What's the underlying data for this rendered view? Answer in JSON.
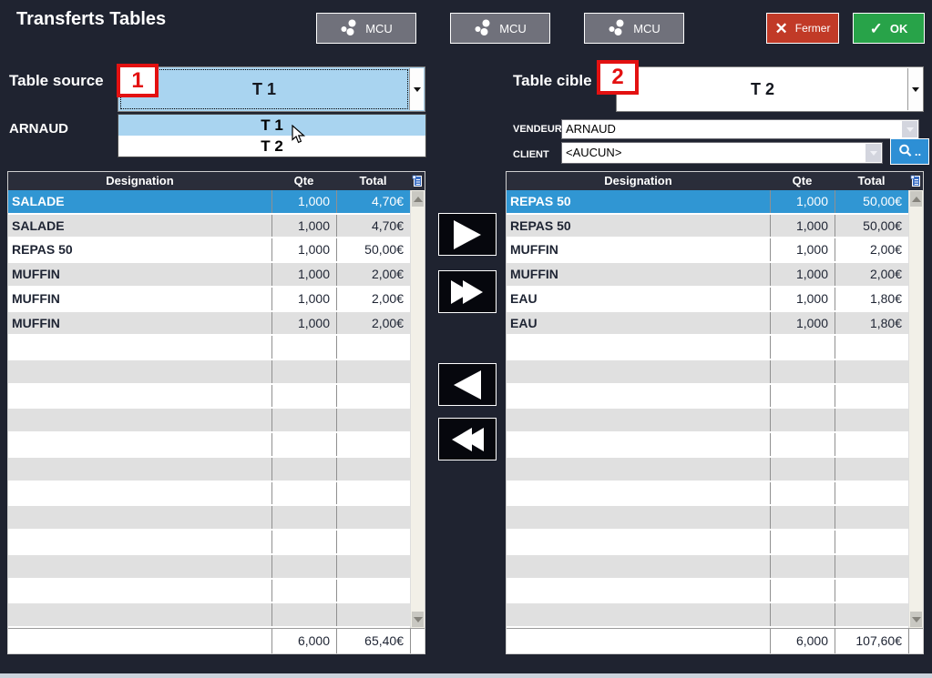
{
  "window": {
    "title": "Transferts Tables"
  },
  "toolbar": {
    "mcu_buttons": [
      "MCU",
      "MCU",
      "MCU"
    ],
    "fermer_label": "Fermer",
    "ok_label": "OK"
  },
  "source_panel": {
    "label": "Table source",
    "badge": "1",
    "selected_table": "T 1",
    "dropdown_options": [
      "T 1",
      "T 2"
    ],
    "vendor_name": "ARNAUD"
  },
  "target_panel": {
    "label": "Table cible",
    "badge": "2",
    "selected_table": "T 2",
    "vendeur_label": "VENDEUR",
    "vendeur_value": "ARNAUD",
    "client_label": "CLIENT",
    "client_value": "<AUCUN>",
    "search_button_label": ".."
  },
  "source_table": {
    "headers": [
      "Designation",
      "Qte",
      "Total"
    ],
    "selected_index": 0,
    "rows": [
      {
        "designation": "SALADE",
        "qte": "1,000",
        "total": "4,70€"
      },
      {
        "designation": "SALADE",
        "qte": "1,000",
        "total": "4,70€"
      },
      {
        "designation": "REPAS 50",
        "qte": "1,000",
        "total": "50,00€"
      },
      {
        "designation": "MUFFIN",
        "qte": "1,000",
        "total": "2,00€"
      },
      {
        "designation": "MUFFIN",
        "qte": "1,000",
        "total": "2,00€"
      },
      {
        "designation": "MUFFIN",
        "qte": "1,000",
        "total": "2,00€"
      }
    ],
    "total_qte": "6,000",
    "total_amount": "65,40€"
  },
  "target_table": {
    "headers": [
      "Designation",
      "Qte",
      "Total"
    ],
    "selected_index": 0,
    "rows": [
      {
        "designation": "REPAS 50",
        "qte": "1,000",
        "total": "50,00€"
      },
      {
        "designation": "REPAS 50",
        "qte": "1,000",
        "total": "50,00€"
      },
      {
        "designation": "MUFFIN",
        "qte": "1,000",
        "total": "2,00€"
      },
      {
        "designation": "MUFFIN",
        "qte": "1,000",
        "total": "2,00€"
      },
      {
        "designation": "EAU",
        "qte": "1,000",
        "total": "1,80€"
      },
      {
        "designation": "EAU",
        "qte": "1,000",
        "total": "1,80€"
      }
    ],
    "total_qte": "6,000",
    "total_amount": "107,60€"
  },
  "colors": {
    "bg": "#1f2330",
    "header_row": "#2a2d3a",
    "selected_row": "#3096d3",
    "row_alt": "#e0e0e0",
    "light_blue": "#a9d4f0",
    "badge_red": "#e31111",
    "fermer_red": "#c13a27",
    "ok_green": "#28a349",
    "search_blue": "#2d8fd5",
    "mcu_gray": "#70717b",
    "table_text": "#1e2433",
    "scroll_track": "#f2f0e8",
    "bottom_strip": "#cbd3dc"
  }
}
